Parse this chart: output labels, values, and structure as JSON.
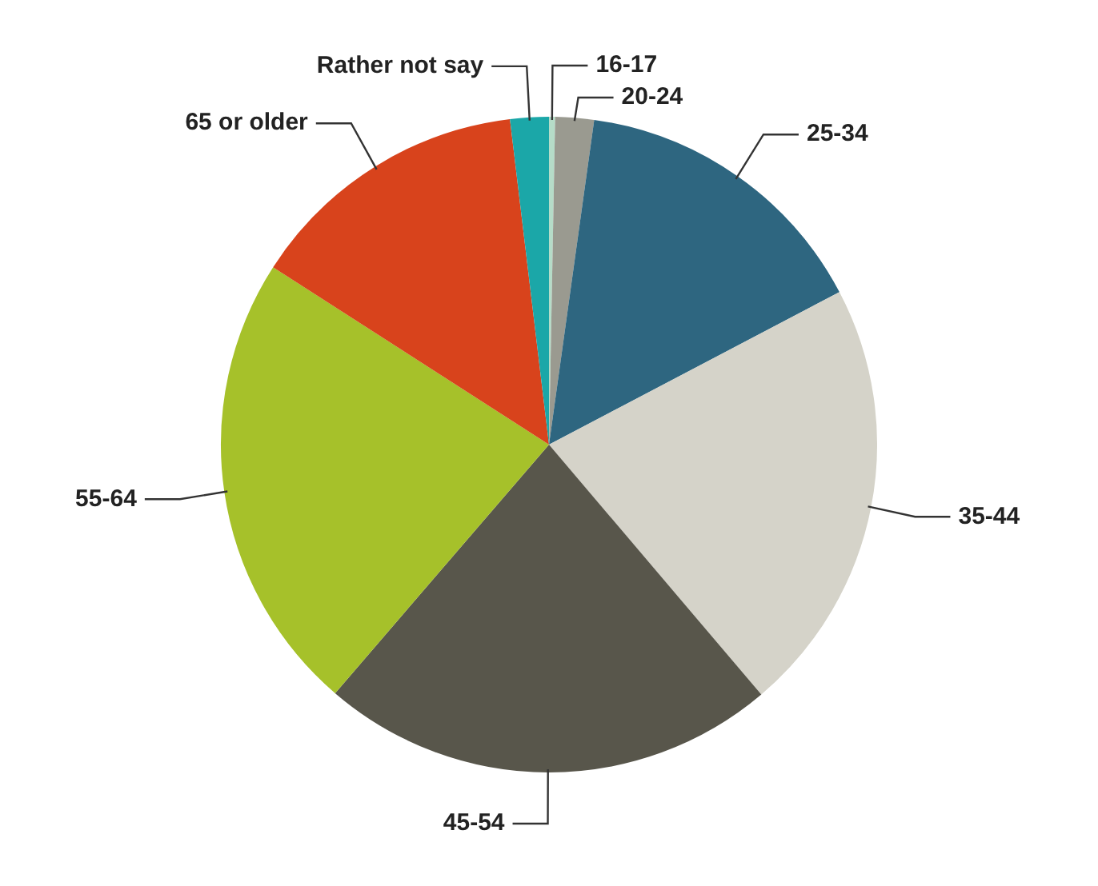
{
  "chart_data": {
    "type": "pie",
    "categories": [
      "16-17",
      "20-24",
      "25-34",
      "35-44",
      "45-54",
      "55-64",
      "65 or older",
      "Rather not say"
    ],
    "values": [
      0.3,
      1.9,
      15.1,
      21.5,
      22.5,
      22.8,
      14.0,
      1.9
    ],
    "colors": [
      "#b5dcc8",
      "#9a9a90",
      "#2e6680",
      "#d5d3c9",
      "#58564b",
      "#a6c12a",
      "#d8431c",
      "#1ba7a8"
    ],
    "legend": false
  }
}
